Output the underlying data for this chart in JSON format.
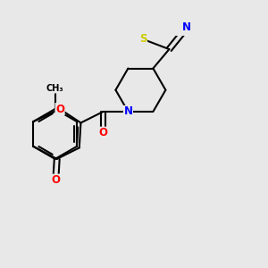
{
  "background_color": "#e8e8e8",
  "bond_color": "#000000",
  "bond_width": 1.5,
  "atom_colors": {
    "O": "#ff0000",
    "N": "#0000ff",
    "S": "#cccc00",
    "C": "#000000"
  },
  "font_size": 8.5,
  "figsize": [
    3.0,
    3.0
  ],
  "dpi": 100
}
